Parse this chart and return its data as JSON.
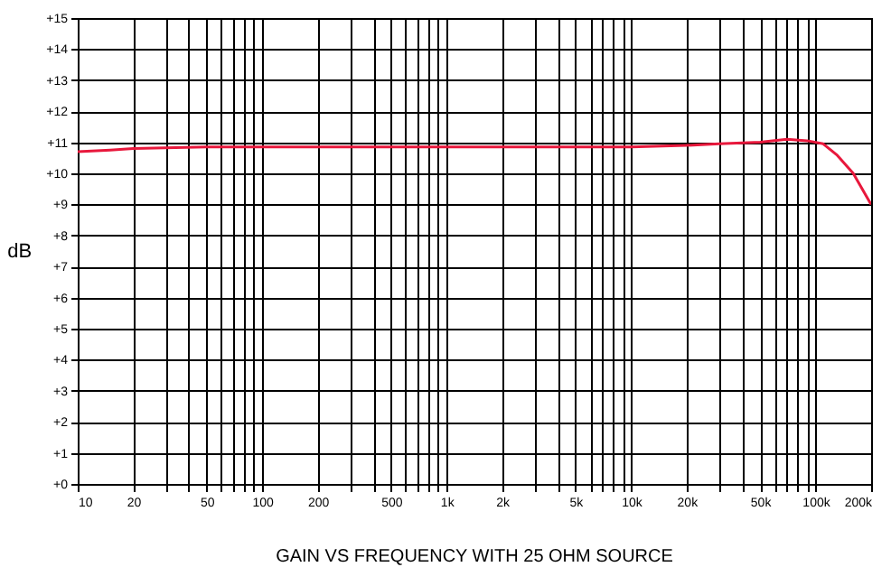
{
  "chart_data": {
    "type": "line",
    "title": "GAIN VS FREQUENCY WITH 25 OHM SOURCE",
    "ylabel": "dB",
    "log": "x",
    "grid": true,
    "marker": "none",
    "line_style": "solid",
    "x": [
      10,
      15,
      20,
      50,
      100,
      1000,
      10000,
      20000,
      30000,
      50000,
      70000,
      90000,
      110000,
      130000,
      160000,
      200000
    ],
    "series": [
      {
        "color": "#e8183c",
        "values": [
          10.7,
          10.75,
          10.8,
          10.85,
          10.85,
          10.85,
          10.85,
          10.9,
          10.95,
          11.0,
          11.1,
          11.05,
          10.95,
          10.6,
          10.0,
          9.0
        ]
      }
    ],
    "xlim": [
      10,
      200000
    ],
    "ylim": [
      0,
      15
    ],
    "xticks": [
      10,
      20,
      {
        "value": 30,
        "label": null
      },
      {
        "value": 40,
        "label": null
      },
      50,
      {
        "value": 60,
        "label": null
      },
      {
        "value": 70,
        "label": null
      },
      {
        "value": 80,
        "label": null
      },
      {
        "value": 90,
        "label": null
      },
      100,
      200,
      {
        "value": 300,
        "label": null
      },
      {
        "value": 400,
        "label": null
      },
      500,
      {
        "value": 600,
        "label": null
      },
      {
        "value": 700,
        "label": null
      },
      {
        "value": 800,
        "label": null
      },
      {
        "value": 900,
        "label": null
      },
      {
        "value": 1000,
        "label": "1k"
      },
      {
        "value": 2000,
        "label": "2k"
      },
      {
        "value": 3000,
        "label": null
      },
      {
        "value": 4000,
        "label": null
      },
      {
        "value": 5000,
        "label": "5k"
      },
      {
        "value": 6000,
        "label": null
      },
      {
        "value": 7000,
        "label": null
      },
      {
        "value": 8000,
        "label": null
      },
      {
        "value": 9000,
        "label": null
      },
      {
        "value": 10000,
        "label": "10k"
      },
      {
        "value": 20000,
        "label": "20k"
      },
      {
        "value": 30000,
        "label": null
      },
      {
        "value": 40000,
        "label": null
      },
      {
        "value": 50000,
        "label": "50k"
      },
      {
        "value": 60000,
        "label": null
      },
      {
        "value": 70000,
        "label": null
      },
      {
        "value": 80000,
        "label": null
      },
      {
        "value": 90000,
        "label": null
      },
      {
        "value": 100000,
        "label": "100k"
      },
      {
        "value": 200000,
        "label": "200k"
      }
    ],
    "yticks": [
      {
        "value": 0,
        "label": "+0"
      },
      {
        "value": 1,
        "label": "+1"
      },
      {
        "value": 2,
        "label": "+2"
      },
      {
        "value": 3,
        "label": "+3"
      },
      {
        "value": 4,
        "label": "+4"
      },
      {
        "value": 5,
        "label": "+5"
      },
      {
        "value": 6,
        "label": "+6"
      },
      {
        "value": 7,
        "label": "+7"
      },
      {
        "value": 8,
        "label": "+8"
      },
      {
        "value": 9,
        "label": "+9"
      },
      {
        "value": 10,
        "label": "+10"
      },
      {
        "value": 11,
        "label": "+11"
      },
      {
        "value": 12,
        "label": "+12"
      },
      {
        "value": 13,
        "label": "+13"
      },
      {
        "value": 14,
        "label": "+14"
      },
      {
        "value": 15,
        "label": "+15"
      }
    ]
  }
}
